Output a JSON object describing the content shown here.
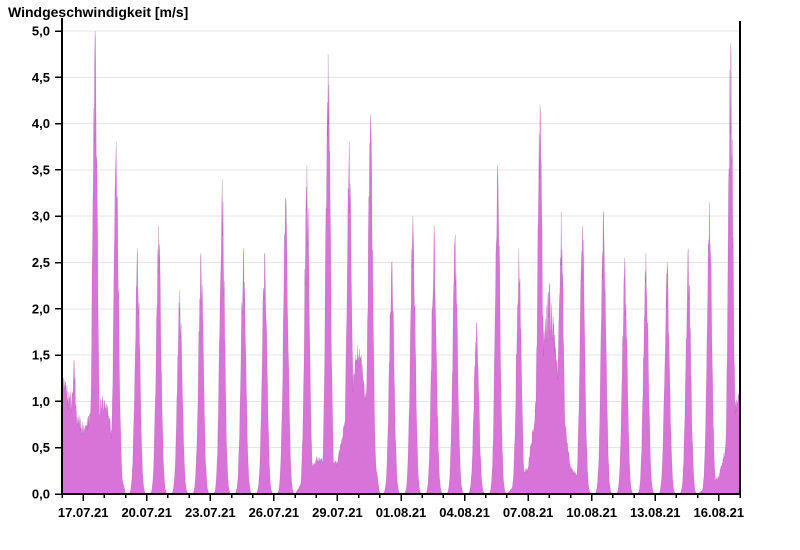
{
  "title": "Windgeschwindigkeit [m/s]",
  "chart_data": {
    "type": "area",
    "series_name": "Windgeschwindigkeit",
    "unit": "m/s",
    "fill_color": "#d874d8",
    "edge_color": "rgba(120,30,120,0.25)",
    "grid_color": "#e6e6e6",
    "axis_color": "#000000",
    "ylim": [
      0,
      5
    ],
    "y_tick_step": 0.5,
    "y_tick_labels": [
      "0,0",
      "0,5",
      "1,0",
      "1,5",
      "2,0",
      "2,5",
      "3,0",
      "3,5",
      "4,0",
      "4,5",
      "5,0"
    ],
    "x_range_days": 32,
    "x_start": "16.07.21",
    "x_end": "17.08.21",
    "x_major_tick_every_days": 3,
    "x_minor_tick_every_days": 1,
    "x_tick_labels": [
      "17.07.21",
      "20.07.21",
      "23.07.21",
      "26.07.21",
      "29.07.21",
      "01.08.21",
      "04.08.21",
      "07.08.21",
      "10.08.21",
      "13.08.21",
      "16.08.21"
    ],
    "grid": {
      "horizontal": true,
      "vertical": false
    },
    "daily": [
      {
        "date": "16.07.21",
        "peak": 1.45,
        "night_min": 1.3
      },
      {
        "date": "17.07.21",
        "peak": 5.0,
        "night_min": 0.75
      },
      {
        "date": "18.07.21",
        "peak": 3.8,
        "night_min": 1.1
      },
      {
        "date": "19.07.21",
        "peak": 2.65,
        "night_min": 0.0
      },
      {
        "date": "20.07.21",
        "peak": 2.9,
        "night_min": 0.0
      },
      {
        "date": "21.07.21",
        "peak": 2.2,
        "night_min": 0.0
      },
      {
        "date": "22.07.21",
        "peak": 2.6,
        "night_min": 0.0
      },
      {
        "date": "23.07.21",
        "peak": 3.4,
        "night_min": 0.0
      },
      {
        "date": "24.07.21",
        "peak": 2.65,
        "night_min": 0.0
      },
      {
        "date": "25.07.21",
        "peak": 2.6,
        "night_min": 0.0
      },
      {
        "date": "26.07.21",
        "peak": 3.2,
        "night_min": 0.0
      },
      {
        "date": "27.07.21",
        "peak": 3.55,
        "night_min": 0.0
      },
      {
        "date": "28.07.21",
        "peak": 4.75,
        "night_min": 0.4
      },
      {
        "date": "29.07.21",
        "peak": 3.8,
        "night_min": 0.35
      },
      {
        "date": "30.07.21",
        "peak": 4.1,
        "night_min": 1.7
      },
      {
        "date": "31.07.21",
        "peak": 2.5,
        "night_min": 0.0
      },
      {
        "date": "01.08.21",
        "peak": 3.0,
        "night_min": 0.0
      },
      {
        "date": "02.08.21",
        "peak": 2.9,
        "night_min": 0.0
      },
      {
        "date": "03.08.21",
        "peak": 2.8,
        "night_min": 0.0
      },
      {
        "date": "04.08.21",
        "peak": 1.85,
        "night_min": 0.0
      },
      {
        "date": "05.08.21",
        "peak": 3.55,
        "night_min": 0.0
      },
      {
        "date": "06.08.21",
        "peak": 2.65,
        "night_min": 0.0
      },
      {
        "date": "07.08.21",
        "peak": 4.2,
        "night_min": 0.3
      },
      {
        "date": "08.08.21",
        "peak": 3.05,
        "night_min": 2.3
      },
      {
        "date": "09.08.21",
        "peak": 2.9,
        "night_min": 0.3
      },
      {
        "date": "10.08.21",
        "peak": 3.05,
        "night_min": 0.0
      },
      {
        "date": "11.08.21",
        "peak": 2.55,
        "night_min": 0.0
      },
      {
        "date": "12.08.21",
        "peak": 2.6,
        "night_min": 0.0
      },
      {
        "date": "13.08.21",
        "peak": 2.5,
        "night_min": 0.0
      },
      {
        "date": "14.08.21",
        "peak": 2.65,
        "night_min": 0.0
      },
      {
        "date": "15.08.21",
        "peak": 3.15,
        "night_min": 0.0
      },
      {
        "date": "16.08.21",
        "peak": 4.87,
        "night_min": 0.2
      }
    ],
    "end_value": 1.2
  }
}
